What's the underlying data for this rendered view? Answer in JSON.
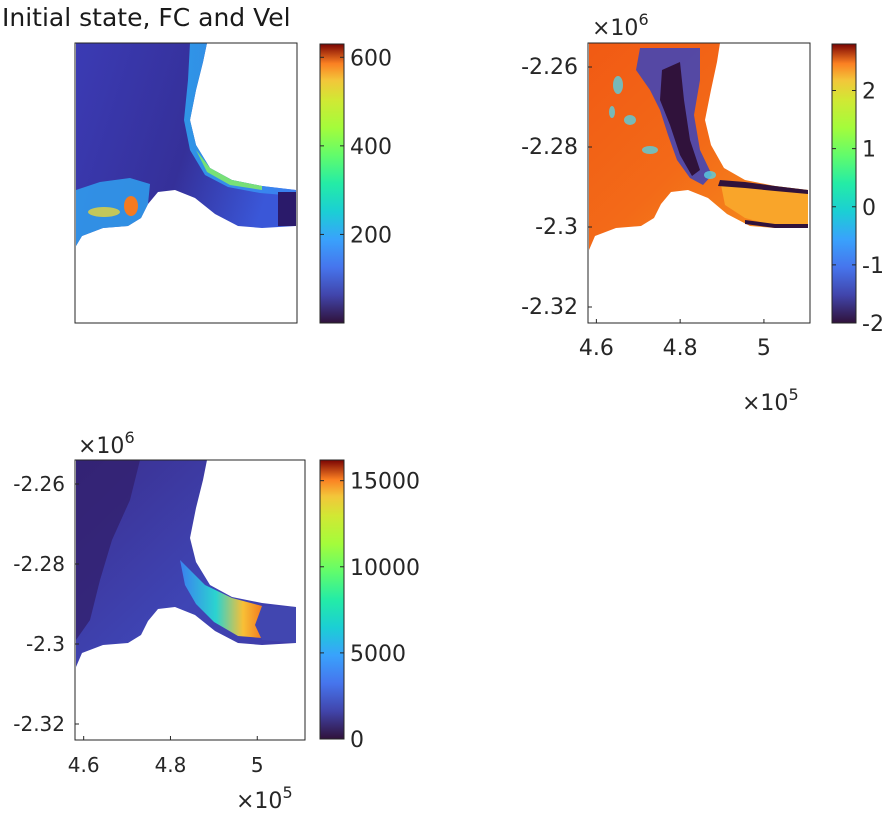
{
  "chart_data": [
    {
      "type": "heatmap",
      "panel": "top-left",
      "title": "Initial state, FC and Vel",
      "colormap": "turbo",
      "colorbar": {
        "ticks": [
          200,
          400,
          600
        ],
        "tick_labels": [
          "200",
          "400",
          "600"
        ],
        "clim": [
          0,
          630
        ]
      },
      "axes": {
        "x_ticks_shown": false,
        "y_ticks_shown": false
      }
    },
    {
      "type": "heatmap",
      "panel": "top-right",
      "colormap": "turbo",
      "x_ticks": [
        4.6,
        4.8,
        5
      ],
      "x_tick_labels": [
        "4.6",
        "4.8",
        "5"
      ],
      "x_exponent": "×10",
      "x_exponent_power": "5",
      "y_ticks": [
        -2.26,
        -2.28,
        -2.3,
        -2.32
      ],
      "y_tick_labels": [
        "-2.26",
        "-2.28",
        "-2.3",
        "-2.32"
      ],
      "y_exponent": "×10",
      "y_exponent_power": "6",
      "xlim": [
        458000,
        511000
      ],
      "ylim": [
        -2324000,
        -2254000
      ],
      "colorbar": {
        "ticks": [
          -2,
          -1,
          0,
          1,
          2
        ],
        "tick_labels": [
          "-2",
          "-1",
          "0",
          "1",
          "2"
        ],
        "clim": [
          -2,
          2.8
        ]
      }
    },
    {
      "type": "heatmap",
      "panel": "bottom-left",
      "colormap": "turbo",
      "x_ticks": [
        4.6,
        4.8,
        5
      ],
      "x_tick_labels": [
        "4.6",
        "4.8",
        "5"
      ],
      "x_exponent": "×10",
      "x_exponent_power": "5",
      "y_ticks": [
        -2.26,
        -2.28,
        -2.3,
        -2.32
      ],
      "y_tick_labels": [
        "-2.26",
        "-2.28",
        "-2.3",
        "-2.32"
      ],
      "y_exponent": "×10",
      "y_exponent_power": "6",
      "xlim": [
        458000,
        511000
      ],
      "ylim": [
        -2324000,
        -2254000
      ],
      "colorbar": {
        "ticks": [
          0,
          5000,
          10000,
          15000
        ],
        "tick_labels": [
          "0",
          "5000",
          "10000",
          "15000"
        ],
        "clim": [
          0,
          16200
        ]
      }
    }
  ]
}
